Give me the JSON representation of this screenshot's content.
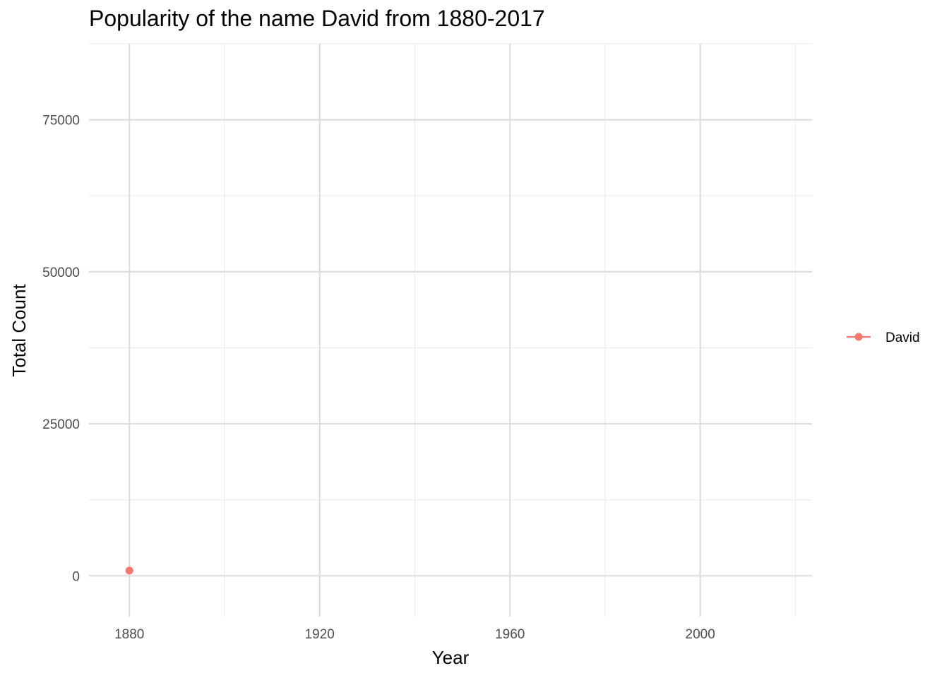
{
  "chart_data": {
    "type": "line",
    "title": "Popularity of the name David from 1880-2017",
    "xlabel": "Year",
    "ylabel": "Total Count",
    "xlim": [
      1871.5,
      2023.5
    ],
    "ylim": [
      -6700,
      87500
    ],
    "x_ticks": [
      1880,
      1920,
      1960,
      2000
    ],
    "x_minor_ticks": [
      1900,
      1940,
      1980,
      2020
    ],
    "y_ticks": [
      0,
      25000,
      50000,
      75000
    ],
    "y_minor_ticks": [
      12500,
      37500,
      62500,
      87500
    ],
    "grid": true,
    "legend_position": "right",
    "series": [
      {
        "name": "David",
        "color": "#F8766D",
        "x": [
          1880
        ],
        "y": [
          869
        ]
      }
    ]
  }
}
